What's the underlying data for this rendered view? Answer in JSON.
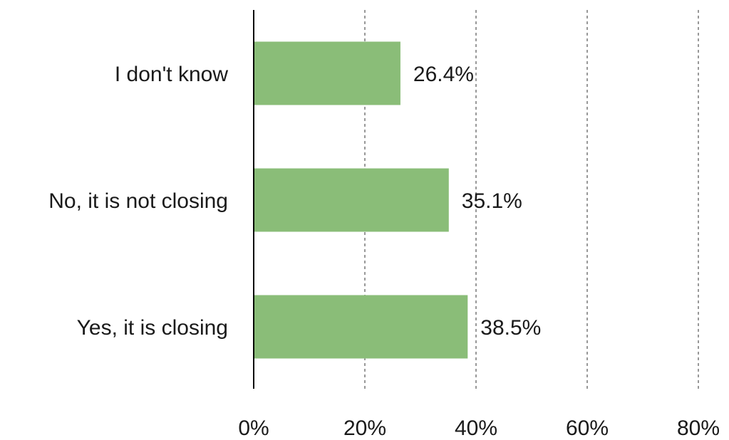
{
  "chart_data": {
    "type": "bar",
    "orientation": "horizontal",
    "categories": [
      "I don't know",
      "No, it is not closing",
      "Yes, it is closing"
    ],
    "values": [
      26.4,
      35.1,
      38.5
    ],
    "value_labels": [
      "26.4%",
      "35.1%",
      "38.5%"
    ],
    "xlim": [
      0,
      80
    ],
    "xticks": [
      0,
      20,
      40,
      60,
      80
    ],
    "xtick_labels": [
      "0%",
      "20%",
      "40%",
      "60%",
      "80%"
    ],
    "title": "",
    "xlabel": "",
    "ylabel": "",
    "grid": "vertical dashed",
    "legend": "none",
    "bar_color": "#8abd78",
    "grid_color": "#999999",
    "axis_color": "#000000"
  }
}
